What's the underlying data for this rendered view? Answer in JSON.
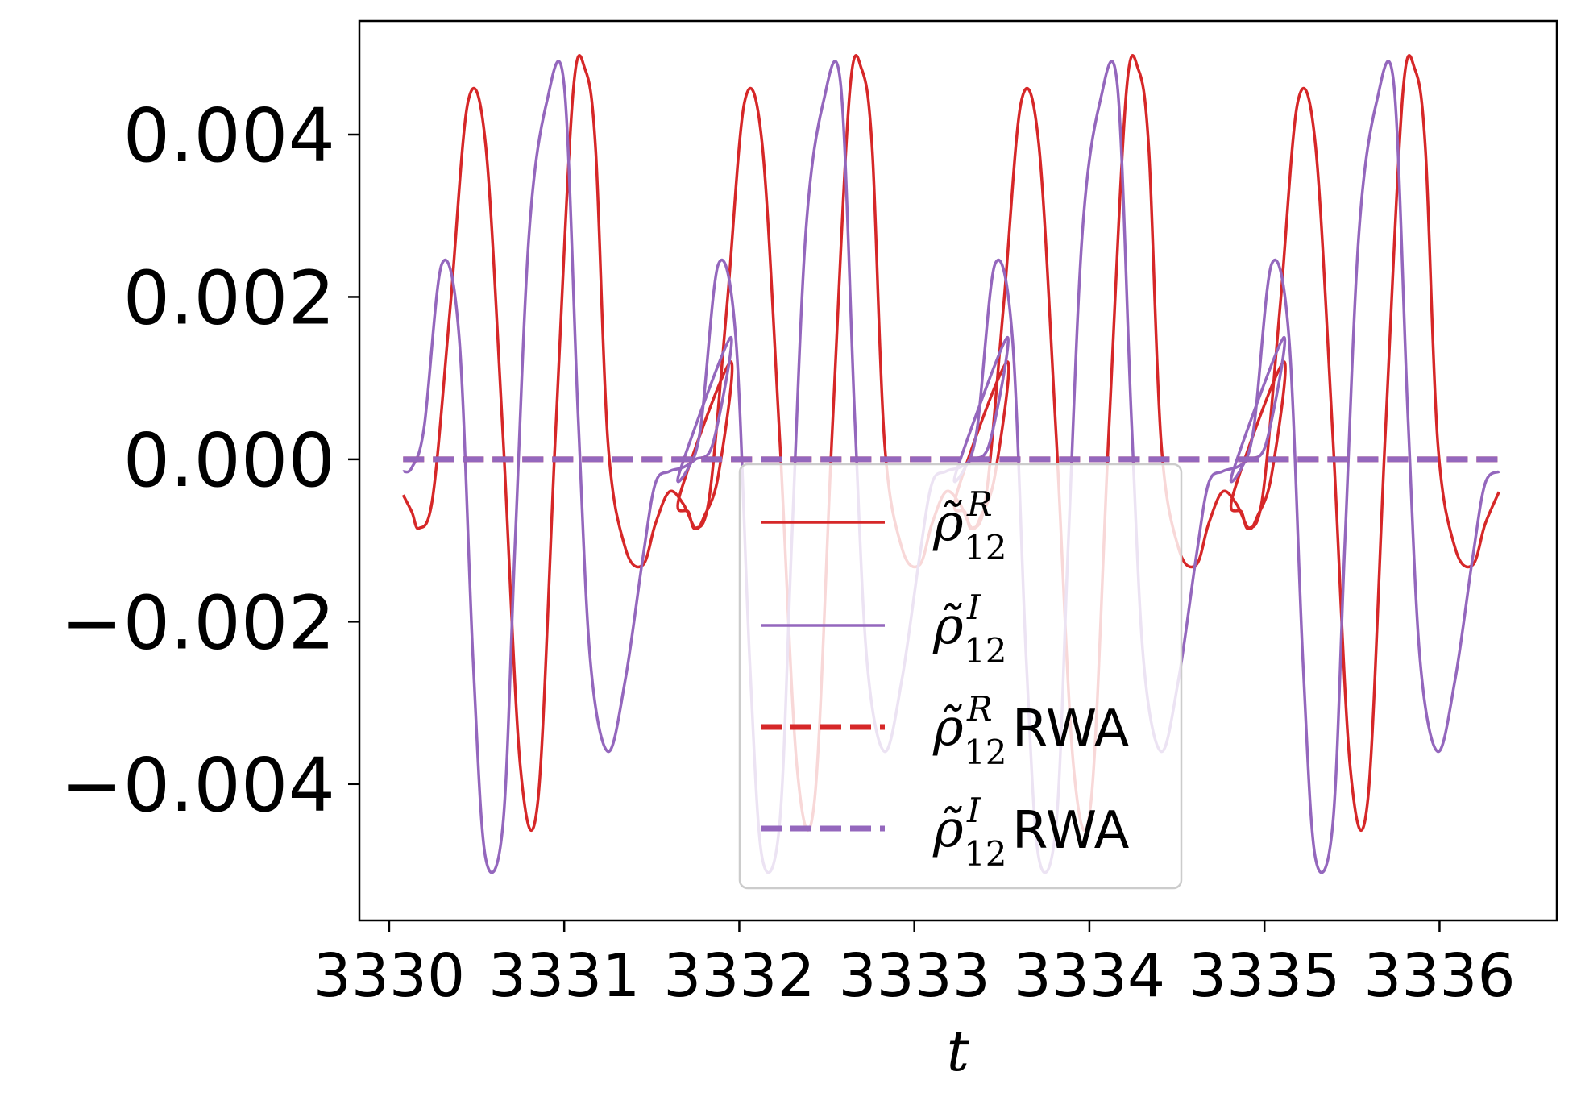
{
  "chart_data": {
    "type": "line",
    "title": "",
    "xlabel": "t",
    "ylabel": "",
    "xlim": [
      3329.83,
      3336.67
    ],
    "ylim": [
      -0.00568,
      0.0054
    ],
    "x_ticks": [
      "3330",
      "3331",
      "3332",
      "3333",
      "3334",
      "3335",
      "3336"
    ],
    "y_ticks": [
      "0.004",
      "0.002",
      "0.000",
      "−0.002",
      "−0.004"
    ],
    "grid": false,
    "legend_position": "lower-center",
    "period": 1.58,
    "series": [
      {
        "name": "ρ̃₁₂ᴿ",
        "legend": {
          "base": "ρ̃",
          "sup": "R",
          "sub": "12",
          "suffix": ""
        },
        "color": "#d62728",
        "style": "solid",
        "x": [
          3330.08,
          3330.13,
          3330.17,
          3330.25,
          3330.35,
          3330.45,
          3330.55,
          3330.65,
          3330.75,
          3330.85,
          3330.95,
          3331.05,
          3331.12,
          3331.18,
          3331.25,
          3331.35,
          3331.45,
          3331.52,
          3331.6,
          3331.68,
          3331.75,
          3331.8,
          3331.88,
          3331.95
        ],
        "values": [
          -0.00044,
          -0.00065,
          -0.00085,
          -0.00045,
          0.0019,
          0.0044,
          0.0039,
          0.0003,
          -0.0038,
          -0.0042,
          0.0003,
          0.0045,
          0.0048,
          0.0038,
          0.0002,
          -0.0011,
          -0.0013,
          -0.0008,
          -0.0004,
          -0.00055,
          -0.00085,
          -0.0007,
          -0.0002,
          0.0012
        ]
      },
      {
        "name": "ρ̃₁₂ᴵ",
        "legend": {
          "base": "ρ̃",
          "sup": "I",
          "sub": "12",
          "suffix": ""
        },
        "color": "#9467bd",
        "style": "solid",
        "x": [
          3330.08,
          3330.13,
          3330.2,
          3330.3,
          3330.4,
          3330.48,
          3330.55,
          3330.65,
          3330.72,
          3330.8,
          3330.9,
          3331.0,
          3331.08,
          3331.15,
          3331.25,
          3331.35,
          3331.45,
          3331.52,
          3331.6,
          3331.68,
          3331.75,
          3331.85,
          3331.95
        ],
        "values": [
          -0.00015,
          -0.0001,
          0.0004,
          0.0024,
          0.0015,
          -0.0025,
          -0.0049,
          -0.0045,
          -0.001,
          0.0028,
          0.0044,
          0.0046,
          0.0005,
          -0.0025,
          -0.0036,
          -0.0027,
          -0.0012,
          -0.0003,
          -0.00015,
          -0.0001,
          0.0,
          0.0002,
          0.0015
        ]
      },
      {
        "name": "ρ̃₁₂ᴿRWA",
        "legend": {
          "base": "ρ̃",
          "sup": "R",
          "sub": "12",
          "suffix": "RWA"
        },
        "color": "#d62728",
        "style": "dashed",
        "x": [
          3330.08,
          3336.38
        ],
        "values": [
          0.0,
          0.0
        ]
      },
      {
        "name": "ρ̃₁₂ᴵRWA",
        "legend": {
          "base": "ρ̃",
          "sup": "I",
          "sub": "12",
          "suffix": "RWA"
        },
        "color": "#9467bd",
        "style": "dashed",
        "x": [
          3330.08,
          3336.38
        ],
        "values": [
          0.0,
          0.0
        ]
      }
    ]
  }
}
